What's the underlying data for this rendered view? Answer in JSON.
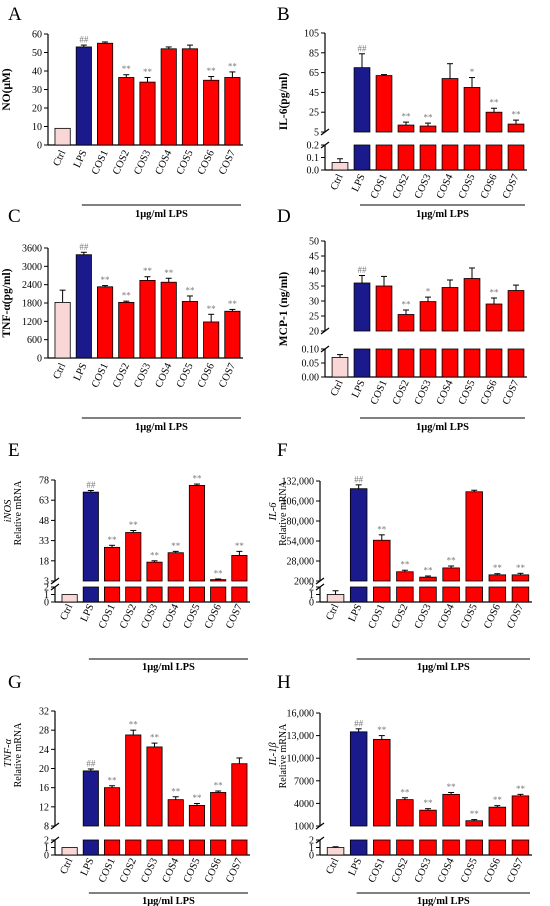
{
  "colors": {
    "ctrl": "#f8d7d6",
    "lps": "#1a1a8c",
    "cos": "#ff0000",
    "axis": "#000000",
    "sig": "#7a7a7a"
  },
  "chart_data": [
    {
      "panel": "A",
      "type": "bar",
      "ylabel": "NO(μM)",
      "ylabel_italic": false,
      "categories": [
        "Ctrl",
        "LPS",
        "COS1",
        "COS2",
        "COS3",
        "COS4",
        "COS5",
        "COS6",
        "COS7"
      ],
      "values": [
        9,
        53,
        55,
        36.5,
        34,
        52,
        52,
        35,
        36.5
      ],
      "errors": [
        0,
        1,
        0.7,
        1.5,
        2.5,
        1,
        2,
        2,
        3
      ],
      "sig": [
        "",
        "##",
        "",
        "**",
        "**",
        "",
        "",
        "**",
        "**"
      ],
      "bracket_label": "1μg/ml  LPS",
      "segments": [
        {
          "range": [
            0,
            60
          ],
          "ticks": [
            "0",
            "10",
            "20",
            "30",
            "40",
            "50",
            "60"
          ],
          "tick_values": [
            0,
            10,
            20,
            30,
            40,
            50,
            60
          ]
        }
      ]
    },
    {
      "panel": "B",
      "type": "bar",
      "ylabel": "IL-6(pg/ml)",
      "ylabel_italic": false,
      "categories": [
        "Ctrl",
        "LPS",
        "COS1",
        "COS2",
        "COS3",
        "COS4",
        "COS5",
        "COS6",
        "COS7"
      ],
      "values": [
        0.06,
        70,
        62,
        12,
        11,
        59,
        50,
        25,
        13
      ],
      "errors": [
        0.03,
        14,
        1,
        3,
        3,
        15,
        10,
        4,
        4
      ],
      "sig": [
        "",
        "##",
        "",
        "**",
        "**",
        "",
        "*",
        "**",
        "**"
      ],
      "bracket_label": "1μg/ml  LPS",
      "segments": [
        {
          "range": [
            0,
            0.2
          ],
          "ticks": [
            "0.0",
            "0.1",
            "0.2"
          ],
          "tick_values": [
            0,
            0.1,
            0.2
          ]
        },
        {
          "range": [
            5,
            105
          ],
          "ticks": [
            "5",
            "25",
            "45",
            "65",
            "85",
            "105"
          ],
          "tick_values": [
            5,
            25,
            45,
            65,
            85,
            105
          ]
        }
      ]
    },
    {
      "panel": "C",
      "type": "bar",
      "ylabel": "TNF-α(pg/ml)",
      "ylabel_italic": false,
      "categories": [
        "Ctrl",
        "LPS",
        "COS1",
        "COS2",
        "COS3",
        "COS4",
        "COS5",
        "COS6",
        "COS7"
      ],
      "values": [
        1820,
        3380,
        2330,
        1820,
        2540,
        2480,
        1850,
        1180,
        1530
      ],
      "errors": [
        400,
        80,
        40,
        40,
        120,
        130,
        180,
        250,
        60
      ],
      "sig": [
        "",
        "##",
        "**",
        "**",
        "**",
        "**",
        "**",
        "**",
        "**"
      ],
      "bracket_label": "1μg/ml  LPS",
      "segments": [
        {
          "range": [
            0,
            3600
          ],
          "ticks": [
            "0",
            "600",
            "1200",
            "1800",
            "2400",
            "3000",
            "3600"
          ],
          "tick_values": [
            0,
            600,
            1200,
            1800,
            2400,
            3000,
            3600
          ]
        }
      ]
    },
    {
      "panel": "D",
      "type": "bar",
      "ylabel": "MCP-1 (ng/ml)",
      "ylabel_italic": false,
      "categories": [
        "Ctrl",
        "LPS",
        "COS1",
        "COS2",
        "COS3",
        "COS4",
        "COS5",
        "COS6",
        "COS7"
      ],
      "values": [
        0.07,
        36,
        35,
        25.5,
        29.8,
        34.5,
        37.5,
        29,
        33.5
      ],
      "errors": [
        0.01,
        2.5,
        3.2,
        1.5,
        1.5,
        2.5,
        3.5,
        2,
        1.8
      ],
      "sig": [
        "",
        "##",
        "",
        "**",
        "*",
        "",
        "",
        "**",
        ""
      ],
      "bracket_label": "1μg/ml  LPS",
      "segments": [
        {
          "range": [
            0,
            0.1
          ],
          "ticks": [
            "0.00",
            "0.05",
            "0.10"
          ],
          "tick_values": [
            0,
            0.05,
            0.1
          ]
        },
        {
          "range": [
            20,
            50
          ],
          "ticks": [
            "20",
            "25",
            "30",
            "35",
            "40",
            "45",
            "50"
          ],
          "tick_values": [
            20,
            25,
            30,
            35,
            40,
            45,
            50
          ]
        }
      ]
    },
    {
      "panel": "E",
      "type": "bar",
      "ylabel": "iNOS",
      "ylabel_sub": "Relative mRNA",
      "ylabel_italic": true,
      "categories": [
        "Ctrl",
        "LPS",
        "COS1",
        "COS2",
        "COS3",
        "COS4",
        "COS5",
        "COS6",
        "COS7"
      ],
      "values": [
        1,
        69,
        28,
        39,
        17,
        24,
        74,
        4,
        22
      ],
      "errors": [
        0,
        1.2,
        1.5,
        1.5,
        1,
        1,
        1,
        0.5,
        3
      ],
      "sig": [
        "",
        "##",
        "**",
        "**",
        "**",
        "**",
        "**",
        "**",
        "**"
      ],
      "bracket_label": "1μg/ml LPS",
      "segments": [
        {
          "range": [
            0,
            2
          ],
          "ticks": [
            "0",
            "1",
            "2"
          ],
          "tick_values": [
            0,
            1,
            2
          ]
        },
        {
          "range": [
            3,
            78
          ],
          "ticks": [
            "3",
            "18",
            "33",
            "48",
            "63",
            "78"
          ],
          "tick_values": [
            3,
            18,
            33,
            48,
            63,
            78
          ]
        }
      ]
    },
    {
      "panel": "F",
      "type": "bar",
      "ylabel": "IL-6",
      "ylabel_sub": "Relative mRNA",
      "ylabel_italic": true,
      "categories": [
        "Ctrl",
        "LPS",
        "COS1",
        "COS2",
        "COS3",
        "COS4",
        "COS5",
        "COS6",
        "COS7"
      ],
      "values": [
        1,
        122000,
        55000,
        14000,
        7000,
        19000,
        118000,
        10000,
        10000
      ],
      "errors": [
        0.5,
        5000,
        7000,
        2000,
        1500,
        2500,
        2000,
        1500,
        2000
      ],
      "sig": [
        "",
        "##",
        "**",
        "**",
        "**",
        "**",
        "",
        "**",
        "**"
      ],
      "bracket_label": "1μg/ml LPS",
      "segments": [
        {
          "range": [
            0,
            2
          ],
          "ticks": [
            "0",
            "1",
            "2"
          ],
          "tick_values": [
            0,
            1,
            2
          ]
        },
        {
          "range": [
            2000,
            132000
          ],
          "ticks": [
            "2000",
            "28,000",
            "54,000",
            "80,000",
            "106,000",
            "132,000"
          ],
          "tick_values": [
            2000,
            28000,
            54000,
            80000,
            106000,
            132000
          ]
        }
      ]
    },
    {
      "panel": "G",
      "type": "bar",
      "ylabel": "TNF-α",
      "ylabel_sub": "Relative mRNA",
      "ylabel_italic": true,
      "categories": [
        "Ctrl",
        "LPS",
        "COS1",
        "COS2",
        "COS3",
        "COS4",
        "COS5",
        "COS6",
        "COS7"
      ],
      "values": [
        1,
        19.5,
        16,
        27,
        24.5,
        13.5,
        12.3,
        15,
        21
      ],
      "errors": [
        0,
        0.4,
        0.4,
        1,
        0.8,
        0.6,
        0.4,
        0.3,
        1.2
      ],
      "sig": [
        "",
        "##",
        "**",
        "**",
        "**",
        "**",
        "**",
        "**",
        ""
      ],
      "bracket_label": "1μg/ml LPS",
      "segments": [
        {
          "range": [
            0,
            2
          ],
          "ticks": [
            "0",
            "1",
            "2"
          ],
          "tick_values": [
            0,
            1,
            2
          ]
        },
        {
          "range": [
            8,
            32
          ],
          "ticks": [
            "8",
            "12",
            "16",
            "20",
            "24",
            "28",
            "32"
          ],
          "tick_values": [
            8,
            12,
            16,
            20,
            24,
            28,
            32
          ]
        }
      ]
    },
    {
      "panel": "H",
      "type": "bar",
      "ylabel": "IL-1β",
      "ylabel_sub": "Relative mRNA",
      "ylabel_italic": true,
      "categories": [
        "Ctrl",
        "LPS",
        "COS1",
        "COS2",
        "COS3",
        "COS4",
        "COS5",
        "COS6",
        "COS7"
      ],
      "values": [
        1,
        13500,
        12500,
        4500,
        3100,
        5200,
        1700,
        3500,
        5000
      ],
      "errors": [
        0.1,
        400,
        500,
        250,
        200,
        250,
        150,
        200,
        200
      ],
      "sig": [
        "",
        "##",
        "**",
        "**",
        "**",
        "**",
        "**",
        "**",
        "**"
      ],
      "bracket_label": "1μg/ml LPS",
      "segments": [
        {
          "range": [
            0,
            2
          ],
          "ticks": [
            "0",
            "1",
            "2"
          ],
          "tick_values": [
            0,
            1,
            2
          ]
        },
        {
          "range": [
            1000,
            16000
          ],
          "ticks": [
            "1000",
            "4000",
            "7000",
            "10,000",
            "13,000",
            "16,000"
          ],
          "tick_values": [
            1000,
            4000,
            7000,
            10000,
            13000,
            16000
          ]
        }
      ]
    }
  ]
}
